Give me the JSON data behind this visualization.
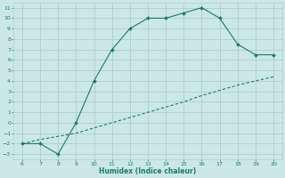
{
  "curve1_x": [
    6,
    7,
    8,
    9,
    10,
    11,
    12,
    13,
    14,
    15,
    16,
    17,
    18,
    19,
    20
  ],
  "curve1_y": [
    -2,
    -2,
    -3,
    0,
    4,
    7,
    9,
    10,
    10,
    10.5,
    11,
    10,
    7.5,
    6.5,
    6.5
  ],
  "curve2_x": [
    6,
    7,
    8,
    9,
    10,
    11,
    12,
    13,
    14,
    15,
    16,
    17,
    18,
    19,
    20
  ],
  "curve2_y": [
    -2,
    -1.6,
    -1.3,
    -1.0,
    -0.5,
    0.0,
    0.5,
    1.0,
    1.5,
    2.0,
    2.6,
    3.1,
    3.6,
    4.0,
    4.4
  ],
  "line_color": "#1a7a6e",
  "bg_color": "#cce8e4",
  "grid_color": "#aad0cc",
  "xlabel": "Humidex (Indice chaleur)",
  "xlim": [
    5.5,
    20.5
  ],
  "ylim": [
    -3.5,
    11.5
  ],
  "xticks": [
    6,
    7,
    8,
    9,
    10,
    11,
    12,
    13,
    14,
    15,
    16,
    17,
    18,
    19,
    20
  ],
  "yticks": [
    -3,
    -2,
    -1,
    0,
    1,
    2,
    3,
    4,
    5,
    6,
    7,
    8,
    9,
    10,
    11
  ]
}
